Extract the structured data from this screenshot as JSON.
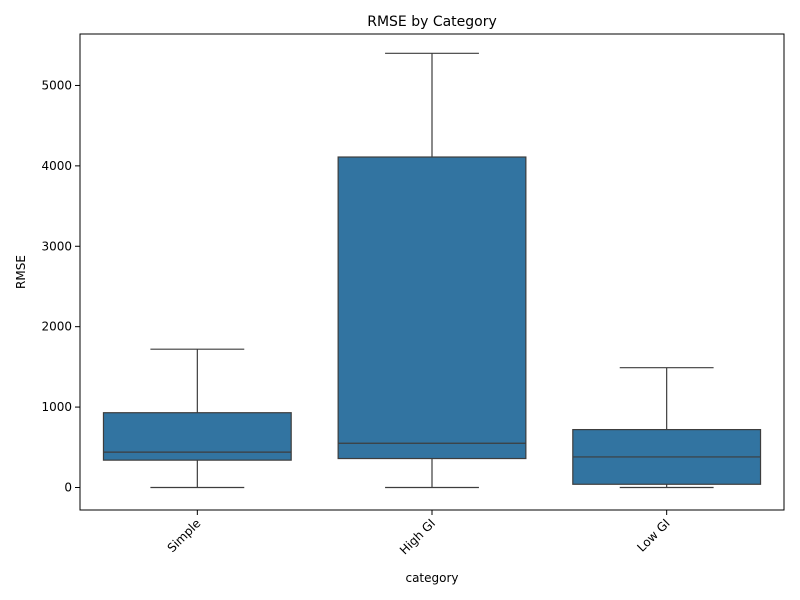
{
  "chart_data": {
    "type": "box",
    "title": "RMSE by Category",
    "xlabel": "category",
    "ylabel": "RMSE",
    "ylim": [
      -280,
      5640
    ],
    "yticks": [
      0,
      1000,
      2000,
      3000,
      4000,
      5000
    ],
    "grid": false,
    "box_color": "#3274a1",
    "line_color": "#3d3d3d",
    "categories": [
      "Simple",
      "High GI",
      "Low GI"
    ],
    "boxes": [
      {
        "category": "Simple",
        "min": 0,
        "q1": 340,
        "median": 440,
        "q3": 930,
        "max": 1720
      },
      {
        "category": "High GI",
        "min": 0,
        "q1": 360,
        "median": 550,
        "q3": 4110,
        "max": 5400
      },
      {
        "category": "Low GI",
        "min": 0,
        "q1": 40,
        "median": 380,
        "q3": 720,
        "max": 1490
      }
    ]
  }
}
